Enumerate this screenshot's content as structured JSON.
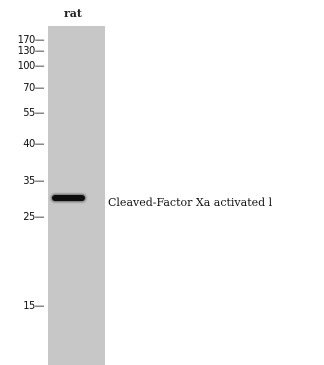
{
  "blot": {
    "lane_label": "rat",
    "band_label": "Cleaved-Factor Xa activated l",
    "markers": [
      "170—",
      "130—",
      "100—",
      "70—",
      "55—",
      "40—",
      "35—",
      "25—",
      "15—"
    ]
  }
}
